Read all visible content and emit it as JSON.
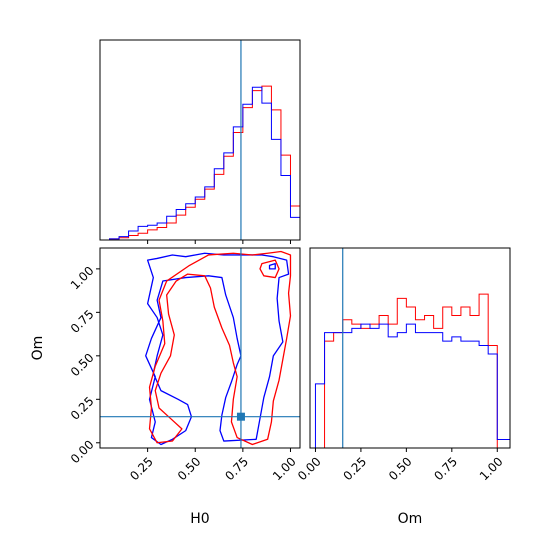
{
  "chart_data": {
    "type": "corner",
    "parameters": [
      "H0",
      "Om"
    ],
    "truth": {
      "H0": 0.74,
      "Om": 0.15
    },
    "colors": {
      "chain_a": "#ff0000",
      "chain_b": "#0000ff",
      "truth": "#1f77b4"
    },
    "panels": [
      {
        "name": "H0 marginal",
        "type": "histogram",
        "xlim": [
          0.0,
          1.05
        ],
        "xticks": [
          0.25,
          0.5,
          0.75,
          1.0
        ],
        "show_tick_labels": false,
        "bin_edges": [
          0.0,
          0.05,
          0.1,
          0.15,
          0.2,
          0.25,
          0.3,
          0.35,
          0.4,
          0.45,
          0.5,
          0.55,
          0.6,
          0.65,
          0.7,
          0.75,
          0.8,
          0.85,
          0.9,
          0.95,
          1.0,
          1.05
        ],
        "series": [
          {
            "color_key": "chain_a",
            "values": [
              0,
              1,
              2,
              4,
              6,
              9,
              11,
              15,
              22,
              29,
              36,
              45,
              58,
              74,
              95,
              117,
              132,
              136,
              115,
              75,
              30,
              0
            ]
          },
          {
            "color_key": "chain_b",
            "values": [
              0,
              1,
              3,
              8,
              12,
              13,
              15,
              21,
              27,
              32,
              38,
              47,
              63,
              77,
              100,
              120,
              135,
              121,
              89,
              57,
              20,
              0
            ]
          }
        ],
        "vline": 0.74
      },
      {
        "name": "Om marginal",
        "type": "histogram",
        "xlim": [
          -0.03,
          1.07
        ],
        "xticks": [
          0.0,
          0.25,
          0.5,
          0.75,
          1.0
        ],
        "xticklabels": [
          "0.00",
          "0.25",
          "0.50",
          "0.75",
          "1.00"
        ],
        "xlabel": "Om",
        "bin_edges": [
          -0.03,
          0.0,
          0.05,
          0.1,
          0.15,
          0.2,
          0.25,
          0.3,
          0.35,
          0.4,
          0.45,
          0.5,
          0.55,
          0.6,
          0.65,
          0.7,
          0.75,
          0.8,
          0.85,
          0.9,
          0.95,
          1.0,
          1.07
        ],
        "series": [
          {
            "color_key": "chain_a",
            "values": [
              0,
              0,
              25,
              27,
              30,
              29,
              28,
              29,
              31,
              29,
              35,
              33,
              30,
              31,
              28,
              33,
              31,
              33,
              31,
              36,
              24,
              0
            ]
          },
          {
            "color_key": "chain_b",
            "values": [
              0,
              15,
              27,
              27,
              27,
              28,
              29,
              28,
              29,
              26,
              27,
              29,
              27,
              27,
              27,
              25,
              26,
              25,
              25,
              24,
              22,
              2
            ]
          }
        ],
        "vline": 0.15
      },
      {
        "name": "H0 vs Om contours",
        "type": "contour",
        "xlim": [
          0.0,
          1.05
        ],
        "ylim": [
          -0.03,
          1.12
        ],
        "xticks": [
          0.25,
          0.5,
          0.75,
          1.0
        ],
        "xticklabels": [
          "0.25",
          "0.50",
          "0.75",
          "1.00"
        ],
        "yticks": [
          0.0,
          0.25,
          0.5,
          0.75,
          1.0
        ],
        "yticklabels": [
          "0.00",
          "0.25",
          "0.50",
          "0.75",
          "1.00"
        ],
        "xlabel": "H0",
        "ylabel": "Om",
        "truth_point": [
          0.74,
          0.15
        ],
        "contours": [
          {
            "color_key": "chain_b",
            "points": [
              [
                0.25,
                1.05
              ],
              [
                0.3,
                1.06
              ],
              [
                0.38,
                1.08
              ],
              [
                0.45,
                1.07
              ],
              [
                0.55,
                1.09
              ],
              [
                0.65,
                1.08
              ],
              [
                0.75,
                1.08
              ],
              [
                0.85,
                1.08
              ],
              [
                0.91,
                1.07
              ],
              [
                0.98,
                1.05
              ],
              [
                0.99,
                0.97
              ],
              [
                0.94,
                0.95
              ],
              [
                0.93,
                0.83
              ],
              [
                0.94,
                0.7
              ],
              [
                0.96,
                0.58
              ],
              [
                0.91,
                0.5
              ],
              [
                0.89,
                0.38
              ],
              [
                0.86,
                0.26
              ],
              [
                0.84,
                0.14
              ],
              [
                0.82,
                0.02
              ],
              [
                0.65,
                0.01
              ],
              [
                0.63,
                0.07
              ],
              [
                0.64,
                0.16
              ],
              [
                0.66,
                0.26
              ],
              [
                0.69,
                0.35
              ],
              [
                0.72,
                0.45
              ],
              [
                0.74,
                0.5
              ],
              [
                0.72,
                0.6
              ],
              [
                0.7,
                0.72
              ],
              [
                0.66,
                0.85
              ],
              [
                0.64,
                0.95
              ],
              [
                0.57,
                0.96
              ],
              [
                0.45,
                0.95
              ],
              [
                0.33,
                0.93
              ],
              [
                0.3,
                0.82
              ],
              [
                0.32,
                0.72
              ],
              [
                0.27,
                0.6
              ],
              [
                0.24,
                0.5
              ],
              [
                0.29,
                0.38
              ],
              [
                0.26,
                0.25
              ],
              [
                0.29,
                0.12
              ],
              [
                0.27,
                0.03
              ],
              [
                0.32,
                -0.01
              ],
              [
                0.38,
                0.02
              ],
              [
                0.45,
                0.07
              ],
              [
                0.48,
                0.15
              ],
              [
                0.46,
                0.22
              ],
              [
                0.41,
                0.25
              ],
              [
                0.32,
                0.3
              ],
              [
                0.28,
                0.4
              ],
              [
                0.3,
                0.5
              ],
              [
                0.33,
                0.62
              ],
              [
                0.3,
                0.72
              ],
              [
                0.25,
                0.8
              ],
              [
                0.28,
                0.95
              ],
              [
                0.25,
                1.05
              ]
            ]
          },
          {
            "color_key": "chain_a",
            "points": [
              [
                0.57,
                1.08
              ],
              [
                0.7,
                1.09
              ],
              [
                0.8,
                1.08
              ],
              [
                0.88,
                1.09
              ],
              [
                0.95,
                1.1
              ],
              [
                1.0,
                1.08
              ],
              [
                1.0,
                0.96
              ],
              [
                0.99,
                0.86
              ],
              [
                1.0,
                0.73
              ],
              [
                0.98,
                0.6
              ],
              [
                0.96,
                0.48
              ],
              [
                0.94,
                0.36
              ],
              [
                0.91,
                0.24
              ],
              [
                0.9,
                0.12
              ],
              [
                0.88,
                0.02
              ],
              [
                0.8,
                -0.01
              ],
              [
                0.72,
                0.03
              ],
              [
                0.69,
                0.12
              ],
              [
                0.7,
                0.25
              ],
              [
                0.72,
                0.38
              ],
              [
                0.7,
                0.46
              ],
              [
                0.68,
                0.56
              ],
              [
                0.64,
                0.66
              ],
              [
                0.6,
                0.78
              ],
              [
                0.58,
                0.89
              ],
              [
                0.55,
                0.96
              ],
              [
                0.46,
                0.97
              ],
              [
                0.4,
                0.93
              ],
              [
                0.35,
                0.85
              ],
              [
                0.36,
                0.74
              ],
              [
                0.39,
                0.62
              ],
              [
                0.37,
                0.5
              ],
              [
                0.32,
                0.4
              ],
              [
                0.29,
                0.3
              ],
              [
                0.31,
                0.2
              ],
              [
                0.37,
                0.14
              ],
              [
                0.43,
                0.08
              ],
              [
                0.38,
                0.01
              ],
              [
                0.3,
                0.0
              ],
              [
                0.26,
                0.08
              ],
              [
                0.27,
                0.2
              ],
              [
                0.26,
                0.32
              ],
              [
                0.29,
                0.44
              ],
              [
                0.34,
                0.57
              ],
              [
                0.33,
                0.7
              ],
              [
                0.31,
                0.82
              ],
              [
                0.35,
                0.93
              ],
              [
                0.47,
                1.02
              ],
              [
                0.57,
                1.08
              ]
            ]
          },
          {
            "color_key": "chain_a",
            "points": [
              [
                0.85,
                1.03
              ],
              [
                0.92,
                1.05
              ],
              [
                0.94,
                1.0
              ],
              [
                0.92,
                0.95
              ],
              [
                0.86,
                0.96
              ],
              [
                0.84,
                1.0
              ],
              [
                0.85,
                1.03
              ]
            ]
          },
          {
            "color_key": "chain_b",
            "points": [
              [
                0.89,
                1.02
              ],
              [
                0.92,
                1.03
              ],
              [
                0.92,
                1.0
              ],
              [
                0.89,
                1.0
              ],
              [
                0.89,
                1.02
              ]
            ]
          }
        ]
      }
    ]
  }
}
